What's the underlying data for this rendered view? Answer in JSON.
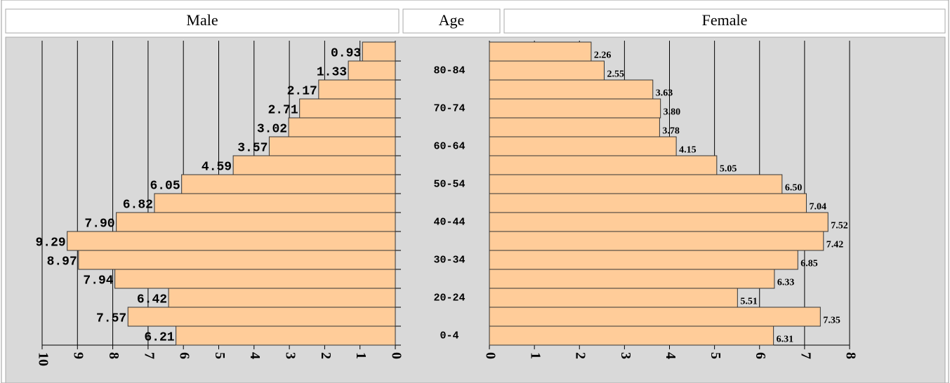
{
  "headers": {
    "male": "Male",
    "age": "Age",
    "female": "Female"
  },
  "chart_data": [
    {
      "type": "bar",
      "orientation": "horizontal",
      "reversed": true,
      "color": "#ffcc99",
      "categories": [
        null,
        "80-84",
        null,
        "70-74",
        null,
        "60-64",
        null,
        "50-54",
        null,
        "40-44",
        null,
        "30-34",
        null,
        "20-24",
        null,
        "0-4"
      ],
      "values": [
        0.93,
        1.33,
        2.17,
        2.71,
        3.02,
        3.57,
        4.59,
        6.05,
        6.82,
        7.9,
        9.29,
        8.97,
        7.94,
        6.42,
        7.57,
        6.21
      ],
      "value_labels": [
        "0.93",
        "1.33",
        "2.17",
        "2.71",
        "3.02",
        "3.57",
        "4.59",
        "6.05",
        "6.82",
        "7.90",
        "9.29",
        "8.97",
        "7.94",
        "6.42",
        "7.57",
        "6.21"
      ],
      "xlim": [
        0,
        10
      ],
      "xticks": [
        0,
        1,
        2,
        3,
        4,
        5,
        6,
        7,
        8,
        9,
        10
      ],
      "grid": true
    },
    {
      "type": "bar",
      "orientation": "horizontal",
      "reversed": false,
      "color": "#ffcc99",
      "values": [
        2.26,
        2.55,
        3.63,
        3.8,
        3.78,
        4.15,
        5.05,
        6.5,
        7.04,
        7.52,
        7.42,
        6.85,
        6.33,
        5.51,
        7.35,
        6.31
      ],
      "value_labels": [
        "2.26",
        "2.55",
        "3.63",
        "3.80",
        "3.78",
        "4.15",
        "5.05",
        "6.50",
        "7.04",
        "7.52",
        "7.42",
        "6.85",
        "6.33",
        "5.51",
        "7.35",
        "6.31"
      ],
      "xlim": [
        0,
        8
      ],
      "xticks": [
        0,
        1,
        2,
        3,
        4,
        5,
        6,
        7,
        8
      ],
      "grid": true
    }
  ]
}
